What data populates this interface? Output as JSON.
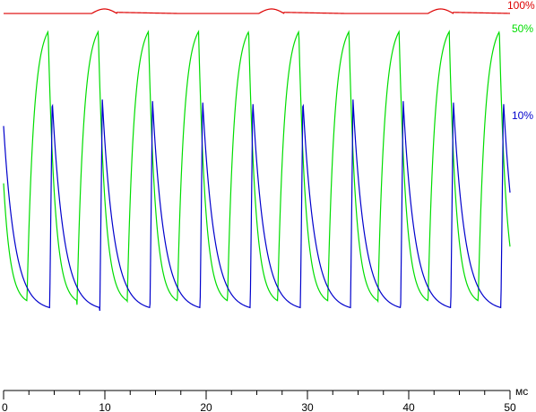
{
  "chart_data": {
    "type": "line",
    "title": "",
    "xlabel": "",
    "ylabel": "",
    "x_unit": "мс",
    "xlim": [
      0,
      50
    ],
    "x_ticks": [
      0,
      10,
      20,
      30,
      40,
      50
    ],
    "x_minor_step": 2.5,
    "grid": false,
    "legend": "inline-right",
    "series": [
      {
        "name": "100%",
        "color": "#dd0000",
        "shape": "flat",
        "level": 0.985,
        "bumps_ms": [
          8.7,
          25.2,
          41.9
        ],
        "bump_width_ms": 2.5,
        "bump_height": 0.015
      },
      {
        "name": "50%",
        "color": "#00dd00",
        "shape": "pulse-train",
        "period_ms": 4.95,
        "first_rise_ms": 2.3,
        "peak": 0.925,
        "trough": 0.02,
        "rise_ms": 2.1,
        "fall_ms": 2.85
      },
      {
        "name": "10%",
        "color": "#0000cc",
        "shape": "pulse-train",
        "period_ms": 4.95,
        "first_rise_ms": 4.55,
        "peak": 0.7,
        "trough": 0.0,
        "rise_ms": 0.25,
        "fall_ms": 4.7
      }
    ]
  }
}
